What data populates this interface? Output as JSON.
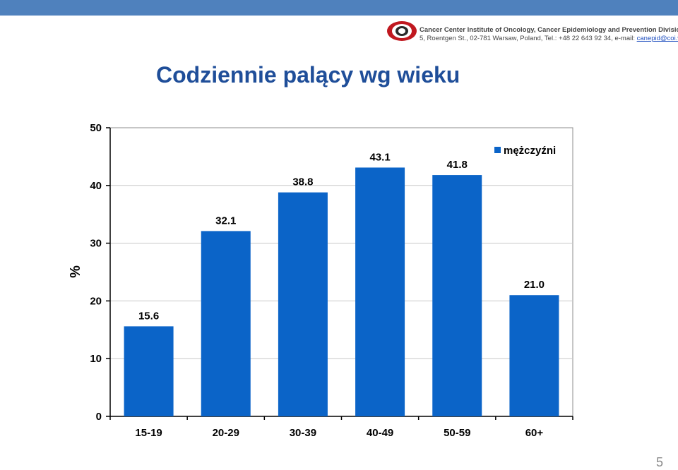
{
  "header": {
    "org_name": "Cancer Center Institute of Oncology, Cancer Epidemiology and Prevention Division",
    "address": "5, Roentgen St., 02-781 Warsaw, Poland, Tel.: +48 22 643 92 34, e-mail:",
    "email": "canepid@coi.waw.pl",
    "logo_icon": "institute-logo-icon",
    "accent_color": "#4f81bd"
  },
  "title": "Codziennie palący wg wieku",
  "page_number": "5",
  "chart_data": {
    "type": "bar",
    "categories": [
      "15-19",
      "20-29",
      "30-39",
      "40-49",
      "50-59",
      "60+"
    ],
    "series": [
      {
        "name": "mężczyźni",
        "values": [
          15.6,
          32.1,
          38.8,
          43.1,
          41.8,
          21.0
        ],
        "color": "#0b64c8"
      }
    ],
    "data_labels": [
      "15.6",
      "32.1",
      "38.8",
      "43.1",
      "41.8",
      "21.0"
    ],
    "ylabel": "%",
    "xlabel": "",
    "ylim": [
      0,
      50
    ],
    "yticks": [
      0,
      10,
      20,
      30,
      40,
      50
    ],
    "ytick_labels": [
      "0",
      "10",
      "20",
      "30",
      "40",
      "50"
    ],
    "grid": true,
    "legend": "top-right"
  }
}
